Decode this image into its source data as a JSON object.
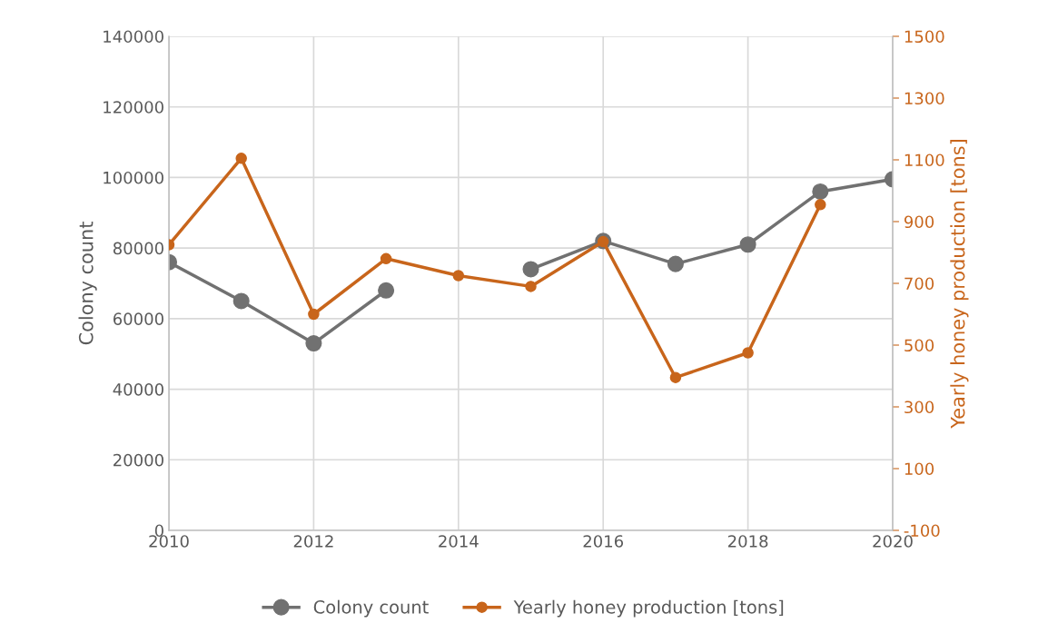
{
  "chart_data": {
    "type": "line",
    "x": [
      2010,
      2011,
      2012,
      2013,
      2014,
      2015,
      2016,
      2017,
      2018,
      2019,
      2020
    ],
    "ylabel": "Colony count",
    "y2label": "Yearly honey production [tons]",
    "series": [
      {
        "name": "Colony count",
        "color": "#717171",
        "values": [
          76000,
          65000,
          53000,
          68000,
          null,
          74000,
          82000,
          75500,
          81000,
          96000,
          99500
        ]
      },
      {
        "name": "Yearly honey production [tons]",
        "color": "#c8651b",
        "axis": "y2",
        "values": [
          825,
          1105,
          600,
          780,
          725,
          690,
          835,
          395,
          475,
          955,
          null
        ]
      }
    ],
    "xlim": [
      2010,
      2020
    ],
    "xticks": [
      2010,
      2012,
      2014,
      2016,
      2018,
      2020
    ],
    "ylim": [
      0,
      140000
    ],
    "yticks": [
      0,
      20000,
      40000,
      60000,
      80000,
      100000,
      120000,
      140000
    ],
    "y2lim": [
      -100,
      1500
    ],
    "y2ticks": [
      -100,
      100,
      300,
      500,
      700,
      900,
      1100,
      1300,
      1500
    ],
    "grid": true,
    "legend": "bottom",
    "marker": "circle",
    "line_style": "solid"
  }
}
